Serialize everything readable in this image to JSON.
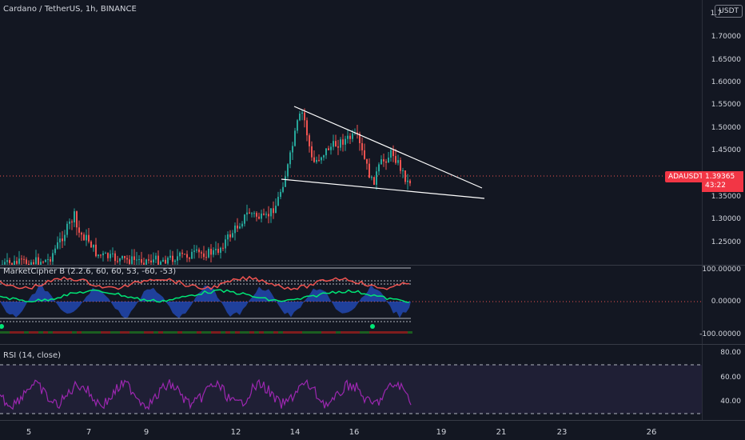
{
  "header": {
    "title": "Cardano / TetherUS, 1h, BINANCE",
    "currency_button": "USDT"
  },
  "price_axis": {
    "top_partial": "1.7",
    "ticks": [
      "1.70000",
      "1.65000",
      "1.60000",
      "1.55000",
      "1.50000",
      "1.45000",
      "1.35000",
      "1.30000",
      "1.25000"
    ]
  },
  "price_tag": {
    "symbol": "ADAUSDT",
    "value": "1.39365",
    "countdown": "43:22",
    "color": "#f23645"
  },
  "market_cipher": {
    "title": "MarketCipher B (2.2.6, 60, 60, 53, -60, -53)",
    "ticks": [
      "100.00000",
      "0.00000",
      "-100.00000"
    ]
  },
  "rsi": {
    "title": "RSI (14, close)",
    "ticks": [
      "80.00",
      "60.00",
      "40.00"
    ]
  },
  "time_axis": {
    "labels": [
      "5",
      "7",
      "9",
      "12",
      "14",
      "16",
      "19",
      "21",
      "23",
      "26"
    ]
  },
  "colors": {
    "background": "#131722",
    "up": "#26a69a",
    "down": "#ef5350",
    "rsi_line": "#9c27b0",
    "wave_blue": "#2962ff",
    "money_flow_green": "#4caf50"
  }
}
